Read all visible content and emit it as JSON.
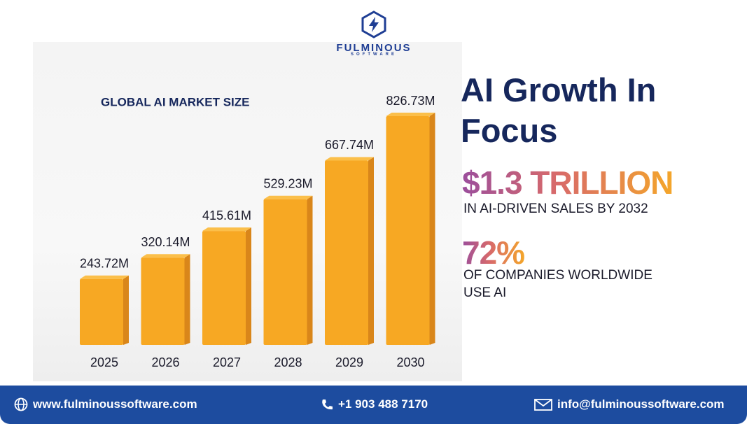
{
  "logo": {
    "name": "FULMINOUS",
    "tagline": "SOFTWARE"
  },
  "chart_data": {
    "type": "bar",
    "title": "GLOBAL AI MARKET SIZE",
    "categories": [
      "2025",
      "2026",
      "2027",
      "2028",
      "2029",
      "2030"
    ],
    "values": [
      243.72,
      320.14,
      415.61,
      529.23,
      667.74,
      826.73
    ],
    "value_labels": [
      "243.72M",
      "320.14M",
      "415.61M",
      "529.23M",
      "667.74M",
      "826.73M"
    ],
    "color": "#f7a823"
  },
  "headline": "AI Growth In Focus",
  "stats": [
    {
      "value": "$1.3 TRILLION",
      "text": "IN AI-DRIVEN SALES BY 2032"
    },
    {
      "value": "72%",
      "text": "OF COMPANIES WORLDWIDE USE AI"
    }
  ],
  "footer": {
    "website": "www.fulminoussoftware.com",
    "phone": "+1 903 488 7170",
    "email": "info@fulminoussoftware.com"
  }
}
